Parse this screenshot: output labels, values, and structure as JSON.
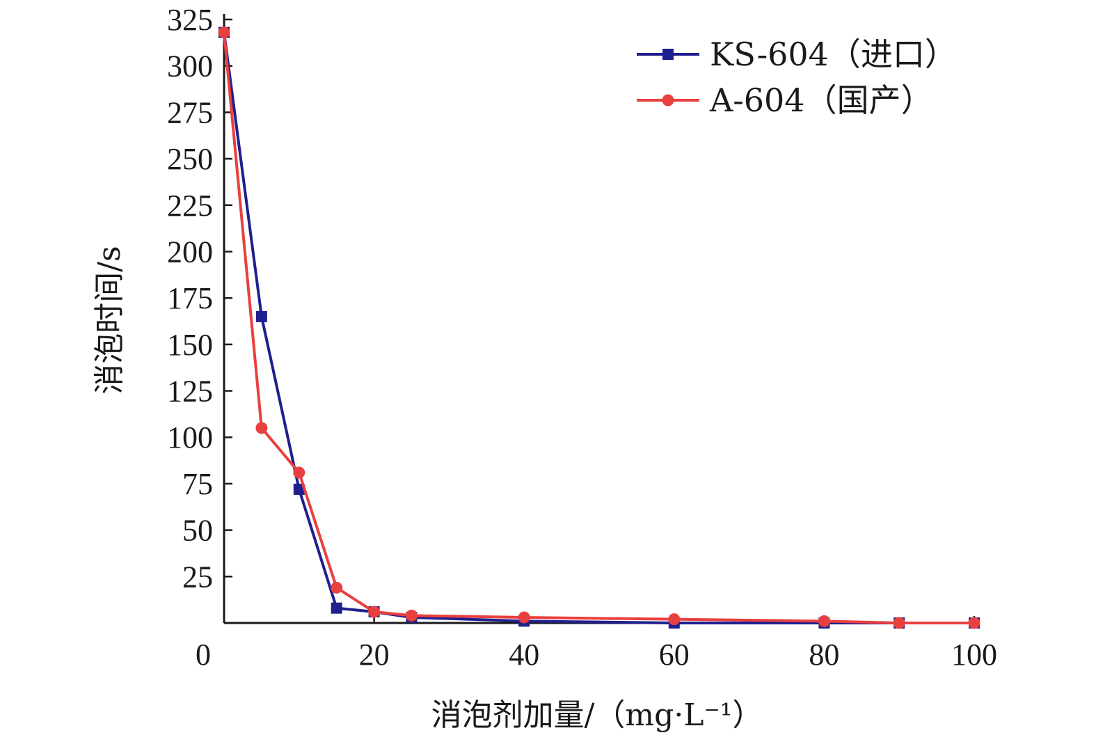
{
  "chart_data": {
    "type": "line",
    "title": "",
    "xlabel": "消泡剂加量/（mg·L⁻¹）",
    "ylabel": "消泡时间/s",
    "xlim": [
      0,
      100
    ],
    "ylim": [
      0,
      325
    ],
    "x_ticks": [
      0,
      20,
      40,
      60,
      80,
      100
    ],
    "y_ticks": [
      25,
      50,
      75,
      100,
      125,
      150,
      175,
      200,
      225,
      250,
      275,
      300,
      325
    ],
    "legend_position": "top-right",
    "grid": false,
    "series": [
      {
        "name": "KS-604（进口）",
        "color": "#1f1f8f",
        "marker": "square",
        "x": [
          0,
          5,
          10,
          15,
          20,
          25,
          40,
          60,
          80,
          90,
          100
        ],
        "y": [
          318,
          165,
          72,
          8,
          6,
          3,
          1,
          0,
          0,
          0,
          0
        ]
      },
      {
        "name": "A-604（国产）",
        "color": "#e8403f",
        "marker": "circle",
        "x": [
          0,
          5,
          10,
          15,
          20,
          25,
          40,
          60,
          80,
          90,
          100
        ],
        "y": [
          318,
          105,
          81,
          19,
          6,
          4,
          3,
          2,
          1,
          0,
          0
        ]
      }
    ]
  }
}
